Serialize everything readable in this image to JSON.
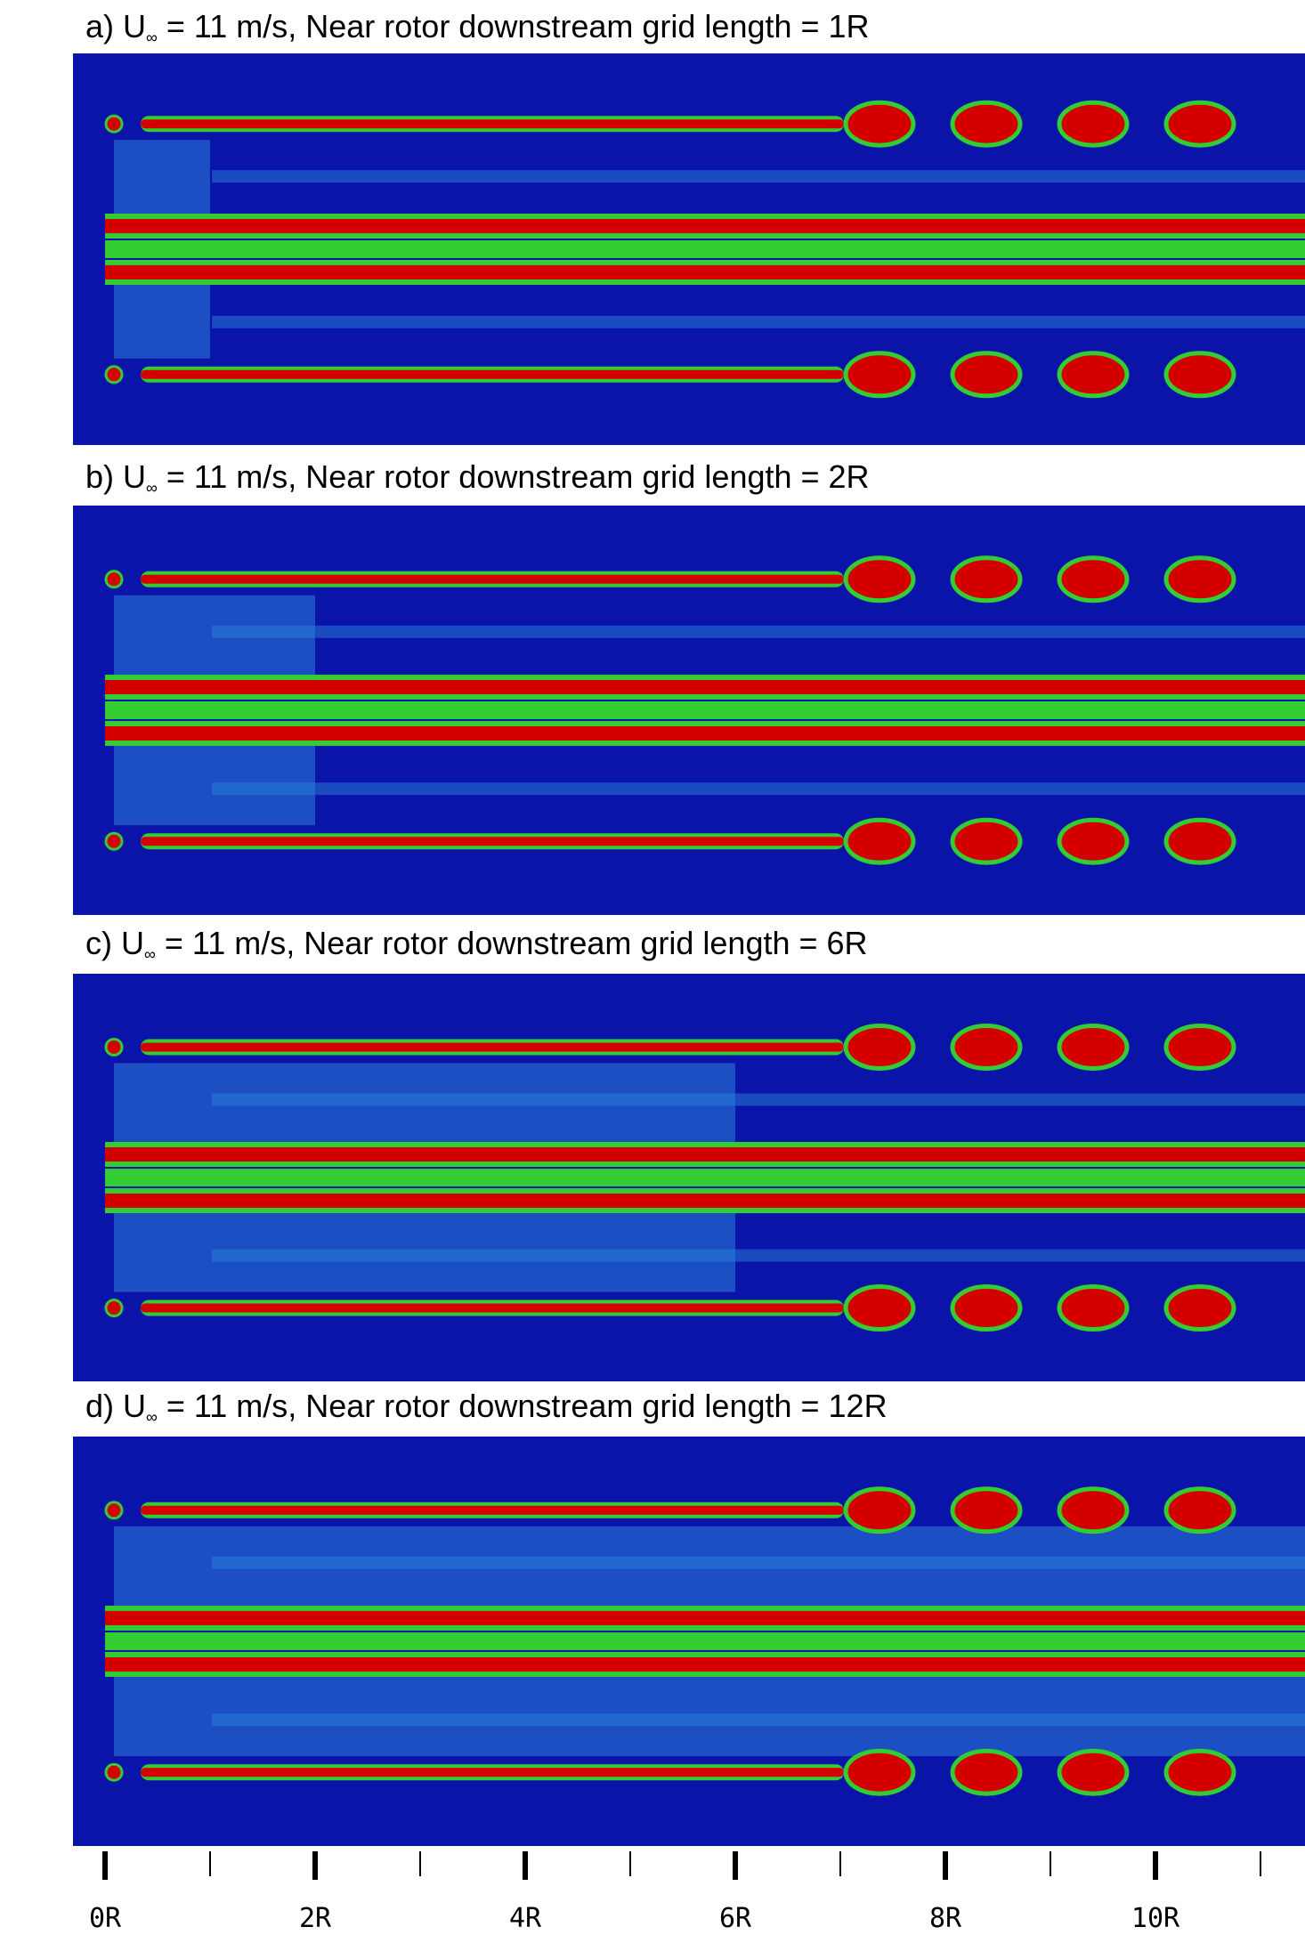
{
  "panels": [
    {
      "prefix": "a) U",
      "sub": "∞",
      "text": " = 11 m/s, Near rotor downstream grid length = 1R",
      "grid_length_R": 1
    },
    {
      "prefix": "b) U",
      "sub": "∞",
      "text": " = 11 m/s, Near rotor downstream grid length = 2R",
      "grid_length_R": 2
    },
    {
      "prefix": "c) U",
      "sub": "∞",
      "text": " = 11 m/s, Near rotor downstream grid length = 6R",
      "grid_length_R": 6
    },
    {
      "prefix": "d) U",
      "sub": "∞",
      "text": " = 11 m/s, Near rotor downstream grid length = 12R",
      "grid_length_R": 12
    }
  ],
  "axis": {
    "labels": [
      "0R",
      "2R",
      "4R",
      "6R",
      "8R",
      "10R"
    ]
  },
  "colors": {
    "background": "#0a14a8",
    "core": "#d40000",
    "shear": "#33cc33",
    "wake": "#2a7fd8"
  }
}
